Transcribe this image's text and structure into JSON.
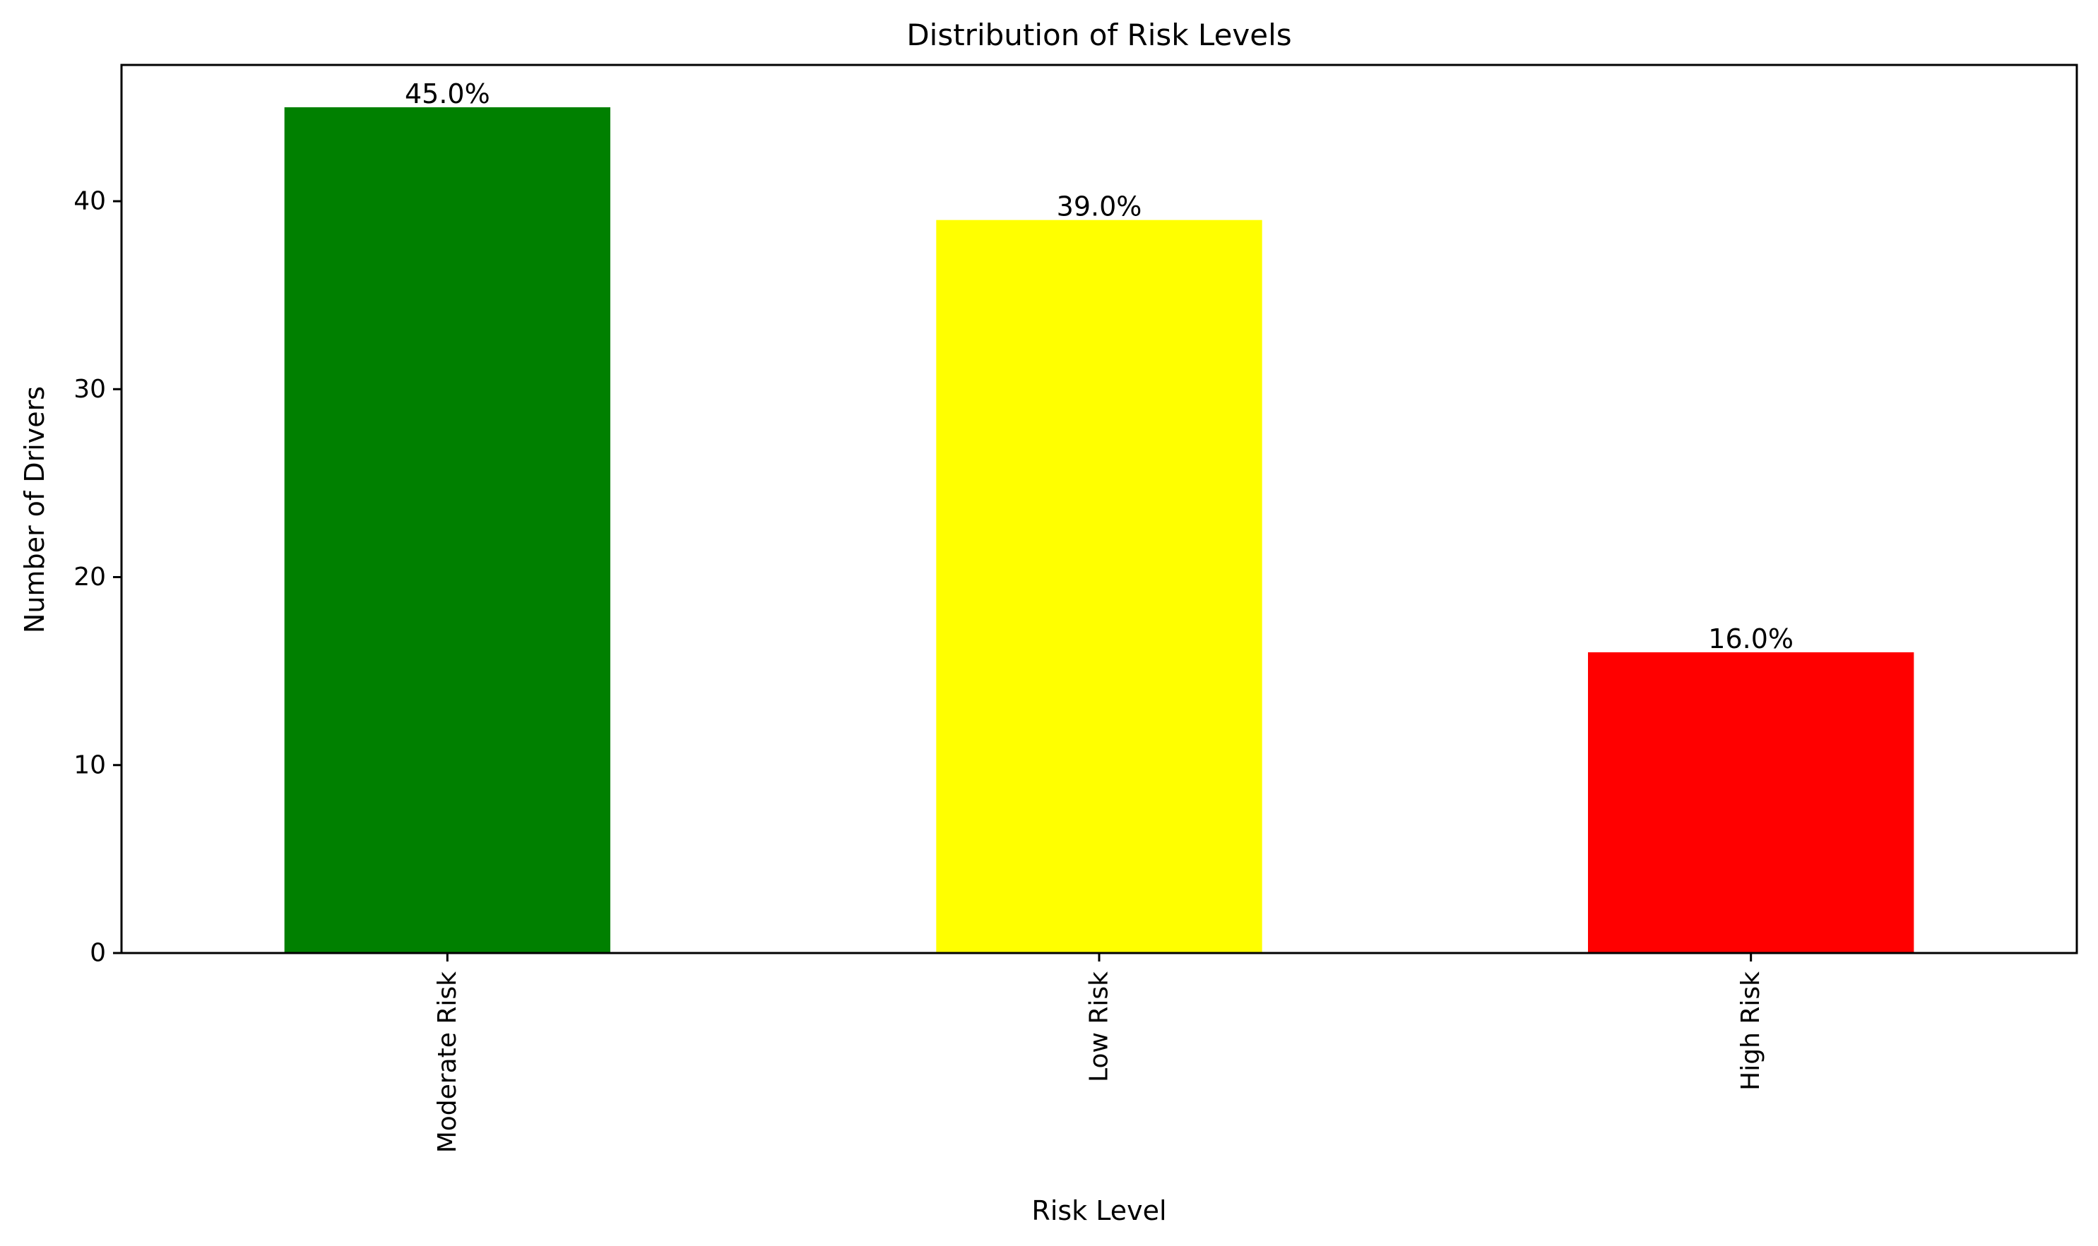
{
  "chart_data": {
    "type": "bar",
    "title": "Distribution of Risk Levels",
    "xlabel": "Risk Level",
    "ylabel": "Number of Drivers",
    "categories": [
      "Moderate Risk",
      "Low Risk",
      "High Risk"
    ],
    "values": [
      45,
      39,
      16
    ],
    "data_labels": [
      "45.0%",
      "39.0%",
      "16.0%"
    ],
    "colors": [
      "#008000",
      "#ffff00",
      "#ff0000"
    ],
    "ylim": [
      0,
      47.25
    ],
    "yticks": [
      0,
      10,
      20,
      30,
      40
    ],
    "ytick_labels": [
      "0",
      "10",
      "20",
      "30",
      "40"
    ],
    "x_tick_rotation": "vertical",
    "grid": false,
    "legend": false
  }
}
